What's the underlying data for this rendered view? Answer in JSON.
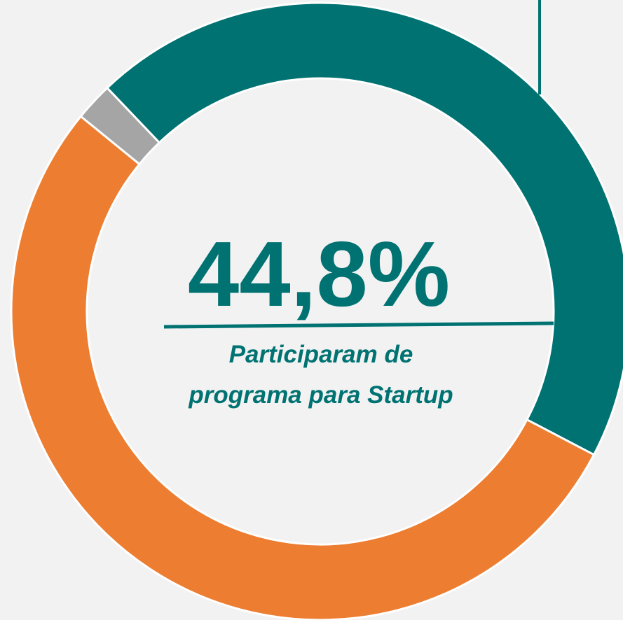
{
  "chart_data": {
    "type": "donut",
    "values": [
      44.8,
      53.2,
      2
    ],
    "value_labels": [
      "44,8%",
      null,
      null
    ],
    "colors": [
      "#007272",
      "#ed7d31",
      "#a5a5a5"
    ],
    "annotation": [
      "Participaram de",
      "programa para Startup"
    ]
  }
}
